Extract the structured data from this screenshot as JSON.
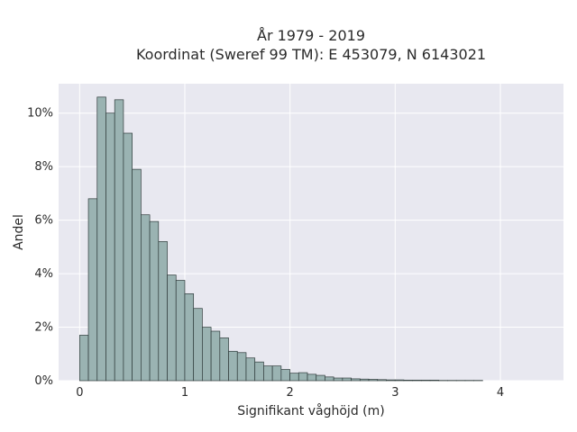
{
  "chart_data": {
    "type": "bar",
    "title": "År 1979 - 2019",
    "subtitle": "Koordinat (Sweref 99 TM): E 453079, N 6143021",
    "xlabel": "Signifikant våghöjd (m)",
    "ylabel": "Andel",
    "xlim": [
      -0.2,
      4.6
    ],
    "ylim": [
      0,
      11.1
    ],
    "x_ticks": [
      0,
      1,
      2,
      3,
      4
    ],
    "x_tick_labels": [
      "0",
      "1",
      "2",
      "3",
      "4"
    ],
    "y_ticks": [
      0,
      2,
      4,
      6,
      8,
      10
    ],
    "y_tick_labels": [
      "0%",
      "2%",
      "4%",
      "6%",
      "8%",
      "10%"
    ],
    "bin_width": 0.0833,
    "bin_start": 0.0,
    "values": [
      1.7,
      6.8,
      10.6,
      10.0,
      10.5,
      9.25,
      7.9,
      6.2,
      5.95,
      5.2,
      3.95,
      3.75,
      3.25,
      2.7,
      2.0,
      1.85,
      1.6,
      1.1,
      1.05,
      0.85,
      0.7,
      0.55,
      0.55,
      0.42,
      0.28,
      0.3,
      0.24,
      0.2,
      0.14,
      0.1,
      0.1,
      0.07,
      0.06,
      0.05,
      0.04,
      0.03,
      0.03,
      0.02,
      0.02,
      0.02,
      0.02,
      0.01,
      0.01,
      0.01,
      0.01,
      0.01
    ],
    "grid": true,
    "bar_color": "#9ab3b2",
    "bar_edge_color": "#2f3b3b",
    "plot_background": "#e8e8f0",
    "grid_color": "#ffffff"
  }
}
